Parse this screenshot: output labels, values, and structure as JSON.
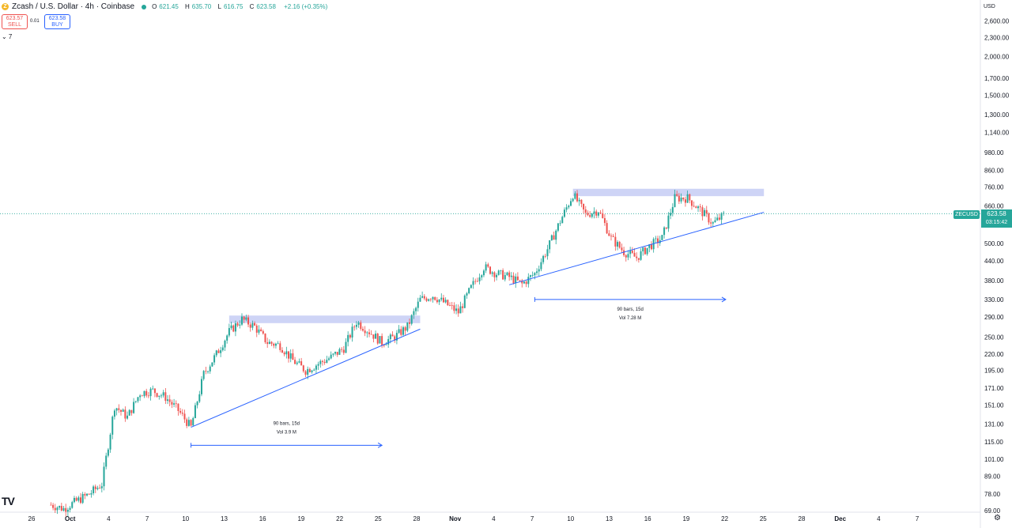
{
  "header": {
    "coin_glyph": "Z",
    "title": "Zcash / U.S. Dollar · 4h · Coinbase",
    "ohlc": {
      "o_label": "O",
      "o": "621.45",
      "h_label": "H",
      "h": "635.70",
      "l_label": "L",
      "l": "616.75",
      "c_label": "C",
      "c": "623.58",
      "change": "+2.16 (+0.35%)"
    }
  },
  "trade": {
    "sell_price": "623.57",
    "sell_label": "SELL",
    "spread": "0.01",
    "buy_price": "623.58",
    "buy_label": "BUY"
  },
  "indicators_toggle": "⌄ 7",
  "price_scale": {
    "currency": "USD",
    "symbol_tag": "ZECUSD",
    "last_price": "623.58",
    "countdown": "03:15:42"
  },
  "logo_text": "TV",
  "settings_icon": "gear-icon",
  "colors": {
    "up": "#26a69a",
    "down": "#ef5350",
    "drawing": "#2962ff",
    "zone": "#c5cdf5"
  },
  "chart_data": {
    "type": "candlestick",
    "symbol": "ZECUSD",
    "interval": "4h",
    "scale": "log",
    "ylim": [
      69,
      2800
    ],
    "y_ticks": [
      "2,600.00",
      "2,300.00",
      "2,000.00",
      "1,700.00",
      "1,500.00",
      "1,300.00",
      "1,140.00",
      "980.00",
      "860.00",
      "760.00",
      "660.00",
      "580.00",
      "500.00",
      "440.00",
      "380.00",
      "330.00",
      "290.00",
      "250.00",
      "220.00",
      "195.00",
      "171.00",
      "151.00",
      "131.00",
      "115.00",
      "101.00",
      "89.00",
      "78.00",
      "69.00"
    ],
    "x_ticks": [
      "26",
      "Oct",
      "4",
      "7",
      "10",
      "13",
      "16",
      "19",
      "22",
      "25",
      "28",
      "Nov",
      "4",
      "7",
      "10",
      "13",
      "16",
      "19",
      "22",
      "25",
      "28",
      "Dec",
      "4",
      "7"
    ],
    "x_range": [
      "2025-09-23",
      "2025-12-09"
    ],
    "series": [
      {
        "dates": [
          "2025-09-27",
          "2025-09-28",
          "2025-09-29",
          "2025-09-30",
          "2025-10-01",
          "2025-10-02",
          "2025-10-03",
          "2025-10-04",
          "2025-10-05",
          "2025-10-06",
          "2025-10-07",
          "2025-10-08",
          "2025-10-09",
          "2025-10-10",
          "2025-10-11",
          "2025-10-12",
          "2025-10-13",
          "2025-10-14",
          "2025-10-15",
          "2025-10-16",
          "2025-10-17",
          "2025-10-18",
          "2025-10-19",
          "2025-10-20",
          "2025-10-21",
          "2025-10-22",
          "2025-10-23",
          "2025-10-24",
          "2025-10-25",
          "2025-10-26",
          "2025-10-27",
          "2025-10-28",
          "2025-10-29",
          "2025-10-30",
          "2025-10-31",
          "2025-11-01",
          "2025-11-02",
          "2025-11-03",
          "2025-11-04",
          "2025-11-05",
          "2025-11-06",
          "2025-11-07",
          "2025-11-08",
          "2025-11-09",
          "2025-11-10",
          "2025-11-11",
          "2025-11-12",
          "2025-11-13",
          "2025-11-14",
          "2025-11-15",
          "2025-11-16",
          "2025-11-17",
          "2025-11-18",
          "2025-11-19"
        ],
        "close": [
          72,
          70,
          74,
          78,
          84,
          150,
          138,
          165,
          168,
          160,
          145,
          128,
          190,
          220,
          260,
          285,
          270,
          240,
          235,
          210,
          195,
          205,
          215,
          230,
          280,
          260,
          240,
          250,
          270,
          330,
          340,
          320,
          300,
          360,
          420,
          400,
          390,
          370,
          400,
          480,
          590,
          720,
          620,
          640,
          520,
          470,
          450,
          490,
          520,
          700,
          700,
          640,
          580,
          623.58
        ]
      }
    ],
    "drawings": [
      {
        "type": "trendline",
        "from": [
          "2025-10-08",
          128
        ],
        "to": [
          "2025-10-26",
          265
        ]
      },
      {
        "type": "trendline",
        "from": [
          "2025-11-02",
          368
        ],
        "to": [
          "2025-11-22",
          630
        ]
      },
      {
        "type": "resistance_zone",
        "from": "2025-10-11",
        "to": "2025-10-26",
        "low": 277,
        "high": 293
      },
      {
        "type": "resistance_zone",
        "from": "2025-11-07",
        "to": "2025-11-22",
        "low": 710,
        "high": 750
      },
      {
        "type": "date_range",
        "from": "2025-10-08",
        "to": "2025-10-23",
        "price": 112,
        "label": "90 bars, 15d",
        "vol": "Vol 3.9 M"
      },
      {
        "type": "date_range",
        "from": "2025-11-04",
        "to": "2025-11-19",
        "price": 330,
        "label": "90 bars, 15d",
        "vol": "Vol 7.28 M"
      }
    ],
    "last_price": 623.58
  }
}
